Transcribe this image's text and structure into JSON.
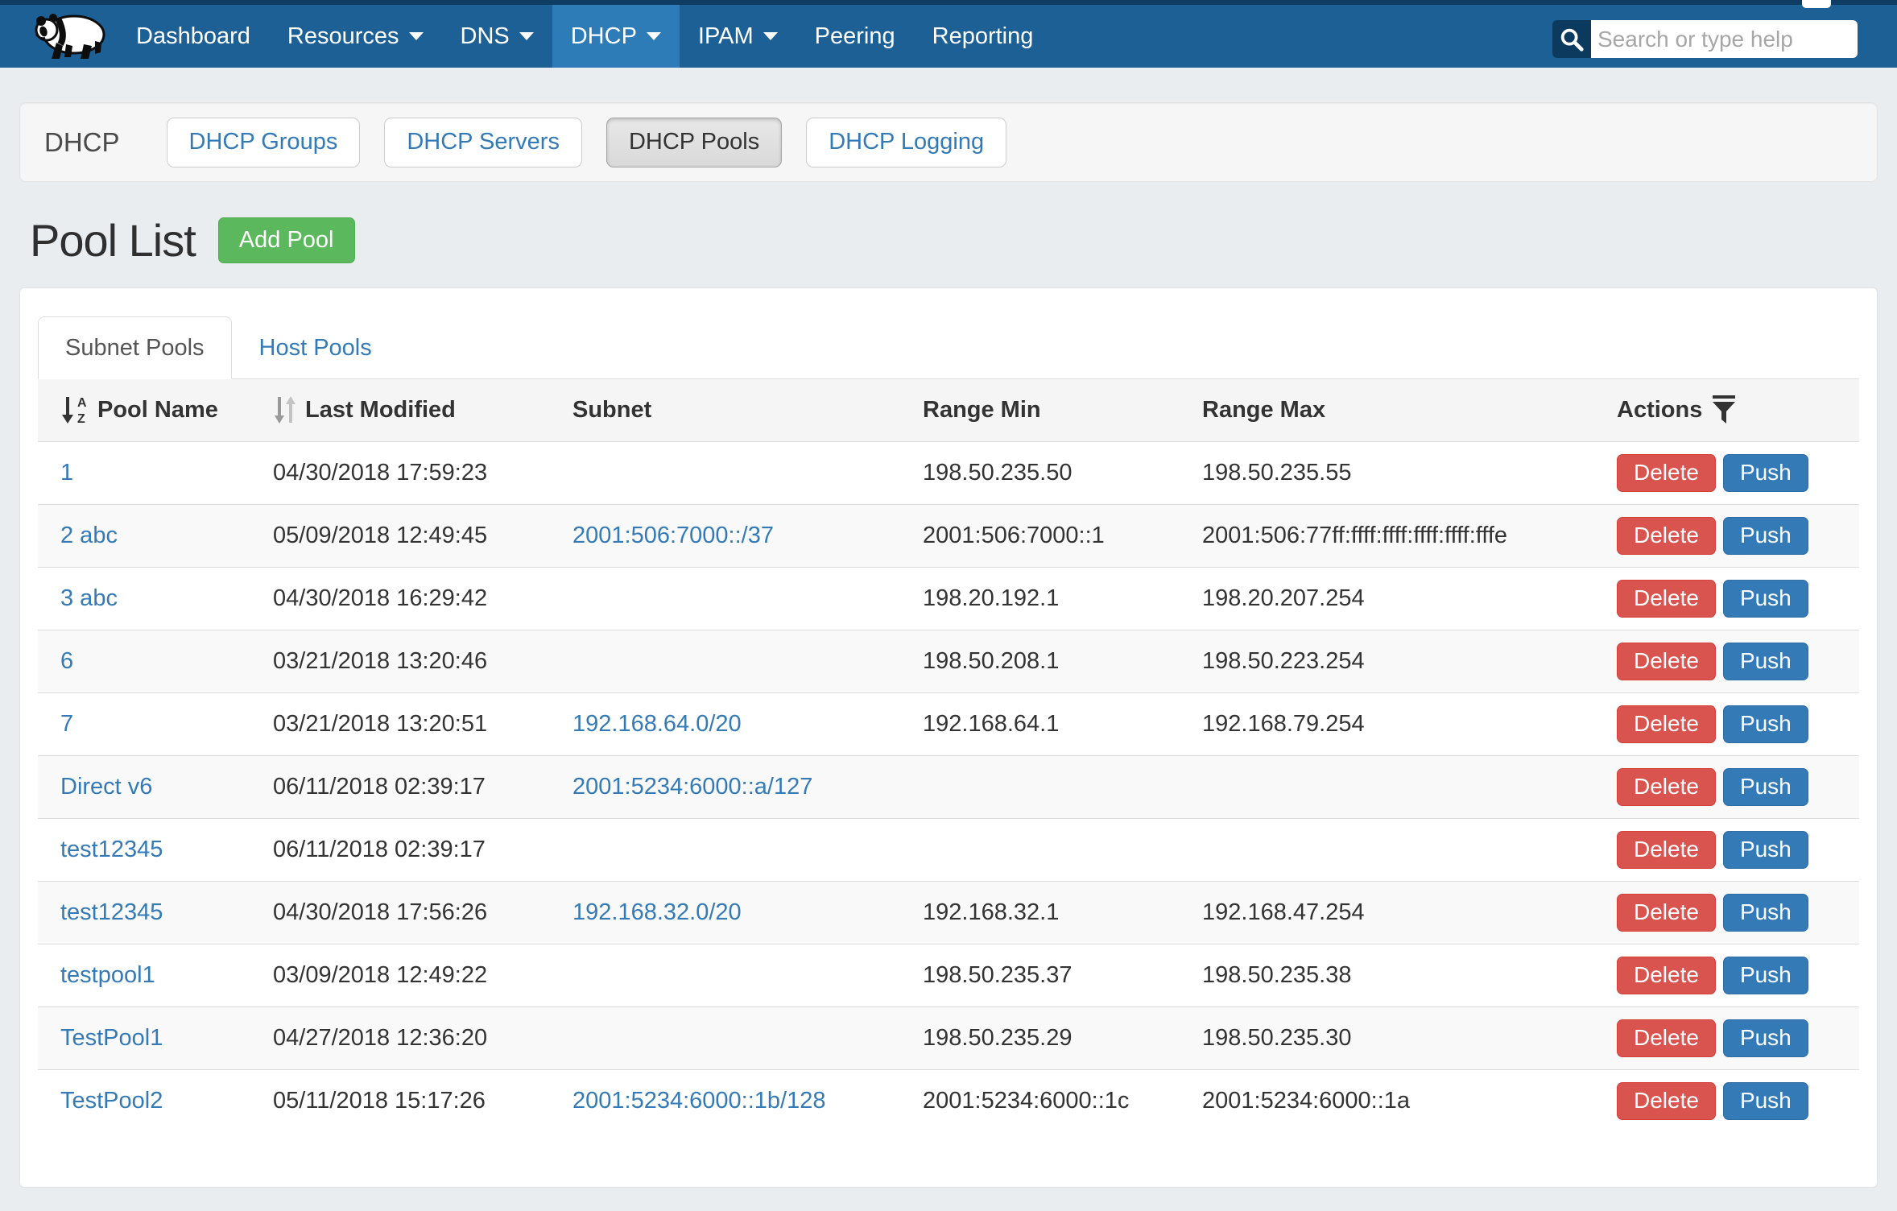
{
  "nav": {
    "items": [
      {
        "label": "Dashboard",
        "dropdown": false,
        "active": false
      },
      {
        "label": "Resources",
        "dropdown": true,
        "active": false
      },
      {
        "label": "DNS",
        "dropdown": true,
        "active": false
      },
      {
        "label": "DHCP",
        "dropdown": true,
        "active": true
      },
      {
        "label": "IPAM",
        "dropdown": true,
        "active": false
      },
      {
        "label": "Peering",
        "dropdown": false,
        "active": false
      },
      {
        "label": "Reporting",
        "dropdown": false,
        "active": false
      }
    ],
    "logo_icon": "panda-logo",
    "search": {
      "placeholder": "Search or type help",
      "value": "",
      "icon": "search-icon"
    }
  },
  "section": {
    "title": "DHCP",
    "buttons": [
      {
        "label": "DHCP Groups",
        "active": false
      },
      {
        "label": "DHCP Servers",
        "active": false
      },
      {
        "label": "DHCP Pools",
        "active": true
      },
      {
        "label": "DHCP Logging",
        "active": false
      }
    ]
  },
  "pool_list": {
    "title": "Pool List",
    "add_button_label": "Add Pool",
    "tabs": [
      {
        "label": "Subnet Pools",
        "active": true
      },
      {
        "label": "Host Pools",
        "active": false
      }
    ],
    "columns": {
      "name": "Pool Name",
      "modified": "Last Modified",
      "subnet": "Subnet",
      "range_min": "Range Min",
      "range_max": "Range Max",
      "actions": "Actions"
    },
    "header_icons": {
      "name_sort": "sort-alpha-asc-icon",
      "modified_sort": "sort-both-icon",
      "actions_filter": "filter-icon"
    },
    "row_actions": {
      "delete_label": "Delete",
      "push_label": "Push"
    },
    "rows": [
      {
        "name": "1",
        "modified": "04/30/2018 17:59:23",
        "subnet": "",
        "range_min": "198.50.235.50",
        "range_max": "198.50.235.55"
      },
      {
        "name": "2 abc",
        "modified": "05/09/2018 12:49:45",
        "subnet": "2001:506:7000::/37",
        "range_min": "2001:506:7000::1",
        "range_max": "2001:506:77ff:ffff:ffff:ffff:ffff:fffe"
      },
      {
        "name": "3 abc",
        "modified": "04/30/2018 16:29:42",
        "subnet": "",
        "range_min": "198.20.192.1",
        "range_max": "198.20.207.254"
      },
      {
        "name": "6",
        "modified": "03/21/2018 13:20:46",
        "subnet": "",
        "range_min": "198.50.208.1",
        "range_max": "198.50.223.254"
      },
      {
        "name": "7",
        "modified": "03/21/2018 13:20:51",
        "subnet": "192.168.64.0/20",
        "range_min": "192.168.64.1",
        "range_max": "192.168.79.254"
      },
      {
        "name": "Direct v6",
        "modified": "06/11/2018 02:39:17",
        "subnet": "2001:5234:6000::a/127",
        "range_min": "",
        "range_max": ""
      },
      {
        "name": "test12345",
        "modified": "06/11/2018 02:39:17",
        "subnet": "",
        "range_min": "",
        "range_max": ""
      },
      {
        "name": "test12345",
        "modified": "04/30/2018 17:56:26",
        "subnet": "192.168.32.0/20",
        "range_min": "192.168.32.1",
        "range_max": "192.168.47.254"
      },
      {
        "name": "testpool1",
        "modified": "03/09/2018 12:49:22",
        "subnet": "",
        "range_min": "198.50.235.37",
        "range_max": "198.50.235.38"
      },
      {
        "name": "TestPool1",
        "modified": "04/27/2018 12:36:20",
        "subnet": "",
        "range_min": "198.50.235.29",
        "range_max": "198.50.235.30"
      },
      {
        "name": "TestPool2",
        "modified": "05/11/2018 15:17:26",
        "subnet": "2001:5234:6000::1b/128",
        "range_min": "2001:5234:6000::1c",
        "range_max": "2001:5234:6000::1a"
      }
    ]
  },
  "colors": {
    "navbar": "#1d6095",
    "navbar_top_strip": "#0e3c62",
    "navbar_active": "#2d7cb7",
    "link_blue": "#337ab7",
    "add_green": "#5cb85c",
    "delete_red": "#d9534f",
    "push_blue": "#337ab7",
    "page_bg": "#e9edf0",
    "stripe": "#f9f9f9",
    "header_bg": "#f5f5f5"
  }
}
